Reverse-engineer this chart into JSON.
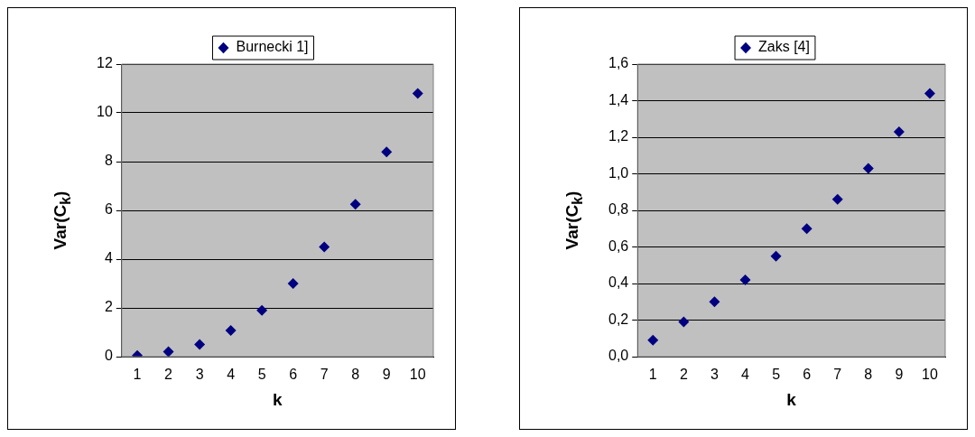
{
  "chart_data": [
    {
      "type": "scatter",
      "categories": [
        "1",
        "2",
        "3",
        "4",
        "5",
        "6",
        "7",
        "8",
        "9",
        "10"
      ],
      "xlabel": "k",
      "ylabel": "Var(C$_{k}$)",
      "series": [
        {
          "name": "Burnecki 1]",
          "color": "#000080",
          "values": [
            0.05,
            0.2,
            0.5,
            1.07,
            1.9,
            3.0,
            4.5,
            6.25,
            8.4,
            10.8
          ]
        }
      ],
      "ylim": [
        0,
        12
      ],
      "yticks": [
        0,
        2,
        4,
        6,
        8,
        10,
        12
      ],
      "grid": "y",
      "legend": "top",
      "marker": "diamond"
    },
    {
      "type": "scatter",
      "categories": [
        "1",
        "2",
        "3",
        "4",
        "5",
        "6",
        "7",
        "8",
        "9",
        "10"
      ],
      "xlabel": "k",
      "ylabel": "Var(C$_{k}$)",
      "series": [
        {
          "name": "Zaks [4]",
          "color": "#000080",
          "values": [
            0.09,
            0.19,
            0.3,
            0.42,
            0.55,
            0.7,
            0.86,
            1.03,
            1.23,
            1.44
          ]
        }
      ],
      "ylim": [
        0,
        1.6
      ],
      "yticks": [
        {
          "value": 0,
          "label": "0,0"
        },
        {
          "value": 0.2,
          "label": "0,2"
        },
        {
          "value": 0.4,
          "label": "0,4"
        },
        {
          "value": 0.6,
          "label": "0,6"
        },
        {
          "value": 0.8,
          "label": "0,8"
        },
        {
          "value": 1.0,
          "label": "1,0"
        },
        {
          "value": 1.2,
          "label": "1,2"
        },
        {
          "value": 1.4,
          "label": "1,4"
        },
        {
          "value": 1.6,
          "label": "1,6"
        }
      ],
      "grid": "y",
      "legend": "top",
      "marker": "diamond"
    }
  ]
}
